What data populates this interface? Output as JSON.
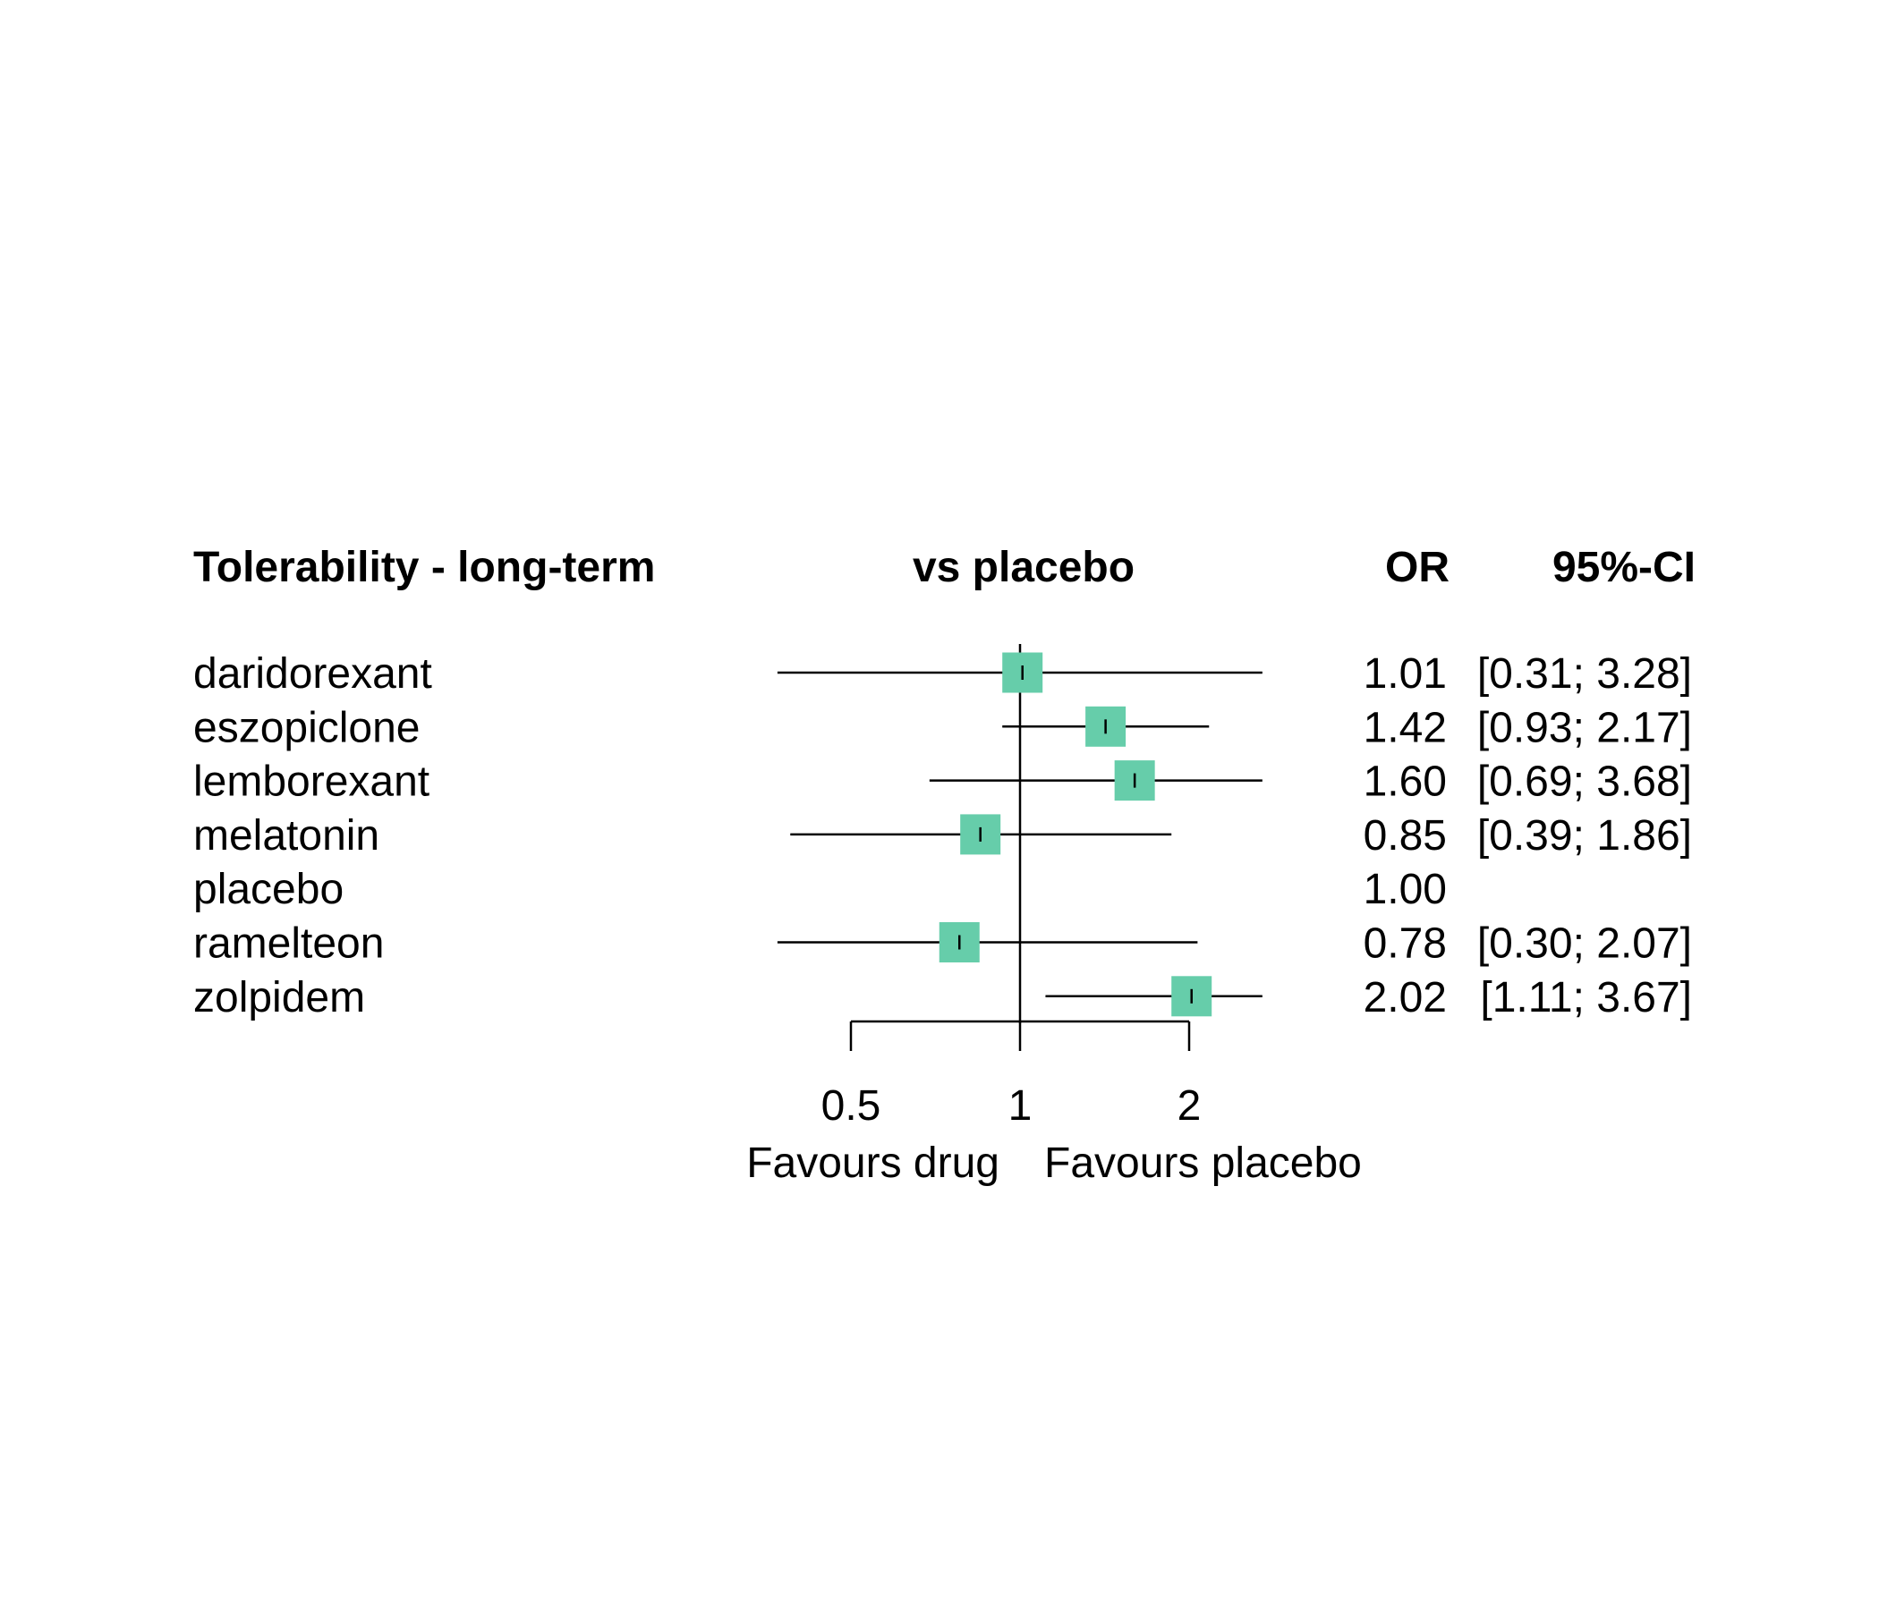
{
  "chart_data": {
    "type": "forest",
    "title": "Tolerability - long-term",
    "comparison_label": "vs placebo",
    "columns": {
      "estimate": "OR",
      "ci": "95%-CI"
    },
    "x_scale": "log",
    "reference_value": 1,
    "xlim": [
      0.37,
      2.7
    ],
    "x_ticks": [
      {
        "value": 0.5,
        "label": "0.5"
      },
      {
        "value": 1,
        "label": "1"
      },
      {
        "value": 2,
        "label": "2"
      }
    ],
    "favours_left": "Favours drug",
    "favours_right": "Favours placebo",
    "marker_color": "#66CDAA",
    "rows": [
      {
        "name": "daridorexant",
        "or": 1.01,
        "lower": 0.31,
        "upper": 3.28,
        "or_text": "1.01",
        "ci_text": "[0.31; 3.28]"
      },
      {
        "name": "eszopiclone",
        "or": 1.42,
        "lower": 0.93,
        "upper": 2.17,
        "or_text": "1.42",
        "ci_text": "[0.93; 2.17]"
      },
      {
        "name": "lemborexant",
        "or": 1.6,
        "lower": 0.69,
        "upper": 3.68,
        "or_text": "1.60",
        "ci_text": "[0.69; 3.68]"
      },
      {
        "name": "melatonin",
        "or": 0.85,
        "lower": 0.39,
        "upper": 1.86,
        "or_text": "0.85",
        "ci_text": "[0.39; 1.86]"
      },
      {
        "name": "placebo",
        "or": 1.0,
        "lower": null,
        "upper": null,
        "or_text": "1.00",
        "ci_text": ""
      },
      {
        "name": "ramelteon",
        "or": 0.78,
        "lower": 0.3,
        "upper": 2.07,
        "or_text": "0.78",
        "ci_text": "[0.30; 2.07]"
      },
      {
        "name": "zolpidem",
        "or": 2.02,
        "lower": 1.11,
        "upper": 3.67,
        "or_text": "2.02",
        "ci_text": "[1.11; 3.67]"
      }
    ]
  }
}
